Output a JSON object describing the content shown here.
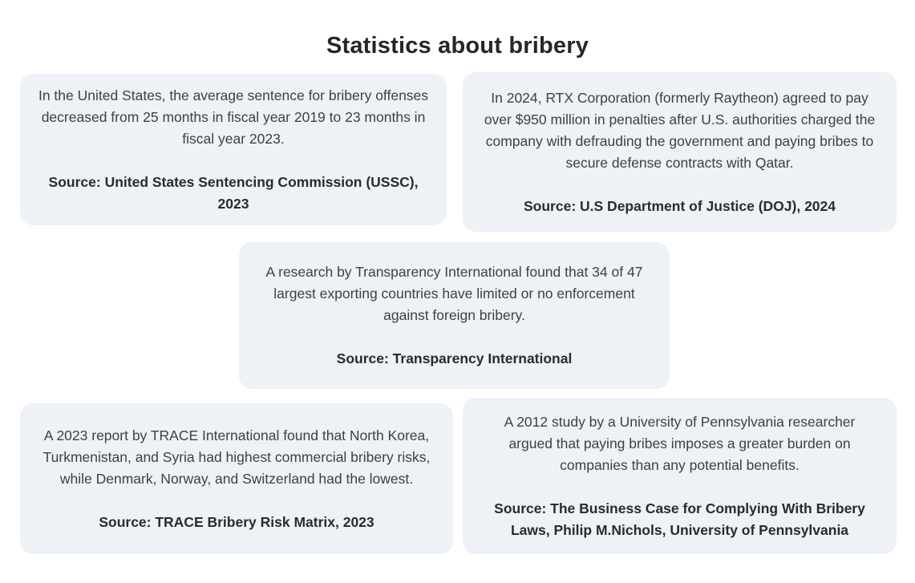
{
  "title": "Statistics about bribery",
  "colors": {
    "page_background": "#ffffff",
    "card_background": "#eef1f6",
    "title_text": "#262626",
    "body_text": "#404040",
    "source_text": "#2b2b2b"
  },
  "cards": [
    {
      "id": "ussc",
      "body": "In the United States, the average sentence for bribery offenses decreased from 25 months in fiscal year 2019 to 23 months in fiscal year 2023.",
      "source": "Source: United States Sentencing Commission (USSC), 2023"
    },
    {
      "id": "doj",
      "body": "In 2024, RTX Corporation (formerly Raytheon) agreed to pay over $950 million in penalties after U.S. authorities charged the company with defrauding the government and paying bribes to secure defense contracts with Qatar.",
      "source": "Source: U.S Department of Justice (DOJ), 2024"
    },
    {
      "id": "transparency-international",
      "body": "A research by Transparency International found that 34 of 47 largest exporting countries have limited or no enforcement against foreign bribery.",
      "source": "Source: Transparency International"
    },
    {
      "id": "trace",
      "body": "A 2023 report by TRACE International found that North Korea, Turkmenistan, and Syria had highest commercial bribery risks, while Denmark, Norway, and Switzerland had the lowest.",
      "source": "Source: TRACE Bribery Risk Matrix, 2023"
    },
    {
      "id": "upenn",
      "body": "A 2012 study by a University of Pennsylvania researcher argued that paying bribes imposes a greater burden on companies than any potential benefits.",
      "source": "Source: The Business Case for Complying With Bribery Laws, Philip M.Nichols, University of Pennsylvania"
    }
  ]
}
